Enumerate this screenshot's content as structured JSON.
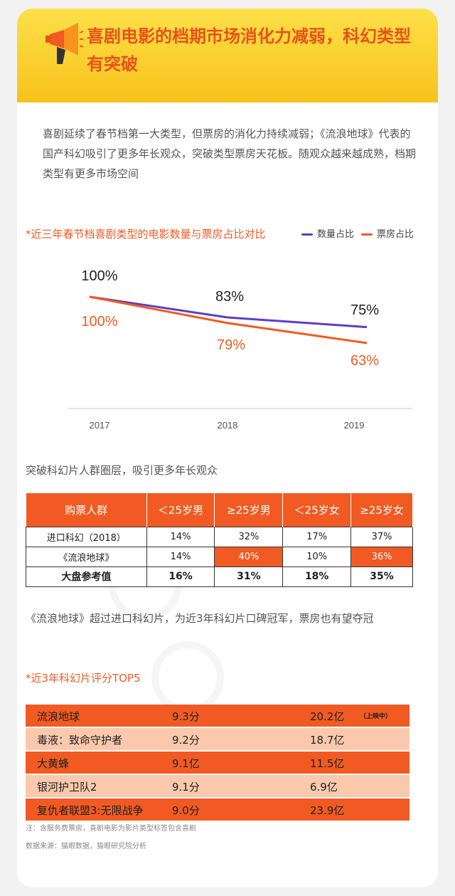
{
  "header": {
    "icon": "megaphone-icon",
    "title": "喜剧电影的档期市场消化力减弱，科幻类型有突破"
  },
  "intro": "喜剧延续了春节档第一大类型，但票房的消化力持续减弱；《流浪地球》代表的国产科幻吸引了更多年长观众，突破类型票房天花板。随观众越来越成熟，档期类型有更多市场空间",
  "chart_title": "*近三年春节档喜剧类型的电影数量与票房占比对比",
  "colors": {
    "accent": "#f15a22",
    "count_series": "#5b3fc4",
    "boxoffice_series": "#f15a22",
    "header": "#f8c21a"
  },
  "chart_data": [
    {
      "type": "line",
      "x": [
        "2017",
        "2018",
        "2019"
      ],
      "series": [
        {
          "name": "数量占比",
          "values": [
            100,
            83,
            75
          ],
          "labels": [
            "100%",
            "83%",
            "75%"
          ],
          "color": "#5b3fc4"
        },
        {
          "name": "票房占比",
          "values": [
            100,
            79,
            63
          ],
          "labels": [
            "100%",
            "79%",
            "63%"
          ],
          "color": "#f15a22"
        }
      ],
      "legend": "top-right",
      "grid": false
    },
    {
      "type": "table",
      "headers": [
        "购票人群",
        "＜25岁男",
        "≥25岁男",
        "＜25岁女",
        "≥25岁女"
      ],
      "rows": [
        {
          "label": "进口科幻（2018）",
          "cells": [
            "14%",
            "32%",
            "17%",
            "37%"
          ],
          "highlight": [
            false,
            false,
            false,
            false
          ],
          "bold": false
        },
        {
          "label": "《流浪地球》",
          "cells": [
            "14%",
            "40%",
            "10%",
            "36%"
          ],
          "highlight": [
            false,
            true,
            false,
            true
          ],
          "bold": false
        },
        {
          "label": "大盘参考值",
          "cells": [
            "16%",
            "31%",
            "18%",
            "35%"
          ],
          "highlight": [
            false,
            false,
            false,
            false
          ],
          "bold": true
        }
      ]
    },
    {
      "type": "table",
      "rows": [
        {
          "name": "流浪地球",
          "score": "9.3分",
          "box": "20.2亿",
          "note": "（上映中）"
        },
        {
          "name": "毒液：致命守护者",
          "score": "9.2分",
          "box": "18.7亿",
          "note": ""
        },
        {
          "name": "大黄蜂",
          "score": "9.1亿",
          "box": "11.5亿",
          "note": ""
        },
        {
          "name": "银河护卫队2",
          "score": "9.1分",
          "box": "6.9亿",
          "note": ""
        },
        {
          "name": "复仇者联盟3:无限战争",
          "score": "9.0分",
          "box": "23.9亿",
          "note": ""
        }
      ]
    }
  ],
  "audience_title": "突破科幻片人群圈层，吸引更多年长观众",
  "summary": "《流浪地球》超过进口科幻片，为近3年科幻片口碑冠军，票房也有望夺冠",
  "top5_title": "*近3年科幻片评分TOP5",
  "footnotes": {
    "note": "注：含服务费票房，喜剧电影为影片类型标签包含喜剧",
    "source": "数据来源：猫眼数据，猫眼研究院分析"
  },
  "watermark": "猫眼研究院"
}
